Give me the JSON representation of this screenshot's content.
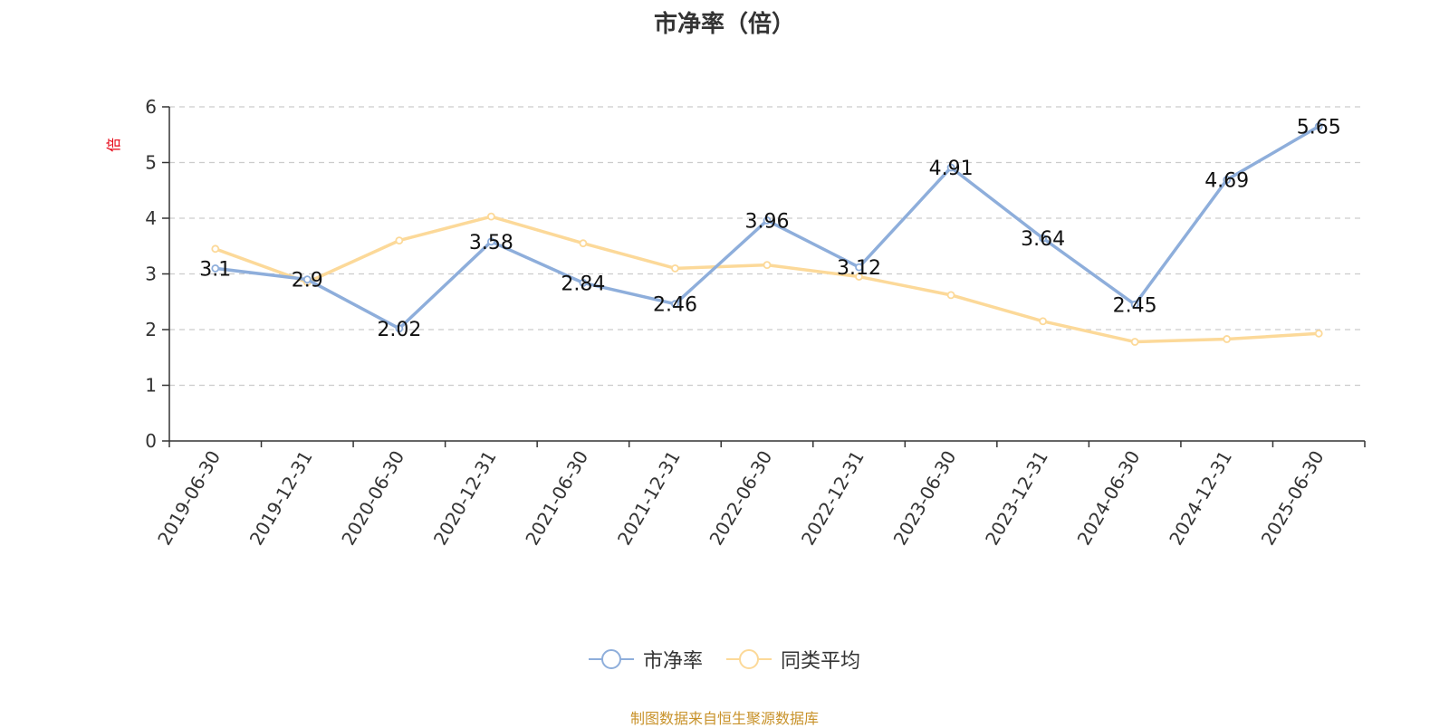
{
  "chart_data": {
    "type": "line",
    "title": "市净率（倍）",
    "y_unit": "倍",
    "categories": [
      "2019-06-30",
      "2019-12-31",
      "2020-06-30",
      "2020-12-31",
      "2021-06-30",
      "2021-12-31",
      "2022-06-30",
      "2022-12-31",
      "2023-06-30",
      "2023-12-31",
      "2024-06-30",
      "2024-12-31",
      "2025-06-30"
    ],
    "ylim": [
      0,
      6
    ],
    "yticks": [
      0,
      1,
      2,
      3,
      4,
      5,
      6
    ],
    "grid": true,
    "legend_position": "bottom",
    "series": [
      {
        "name": "市净率",
        "color": "#8eaedb",
        "values": [
          3.1,
          2.9,
          2.02,
          3.58,
          2.84,
          2.46,
          3.96,
          3.12,
          4.91,
          3.64,
          2.45,
          4.69,
          5.65
        ],
        "labels": [
          "3.1",
          "2.9",
          "2.02",
          "3.58",
          "2.84",
          "2.46",
          "3.96",
          "3.12",
          "4.91",
          "3.64",
          "2.45",
          "4.69",
          "5.65"
        ]
      },
      {
        "name": "同类平均",
        "color": "#fcd999",
        "values": [
          3.45,
          2.85,
          3.6,
          4.03,
          3.55,
          3.1,
          3.16,
          2.95,
          2.62,
          2.15,
          1.78,
          1.83,
          1.93
        ]
      }
    ]
  },
  "legend": {
    "series1_label": "市净率",
    "series2_label": "同类平均"
  },
  "source_note": "制图数据来自恒生聚源数据库"
}
